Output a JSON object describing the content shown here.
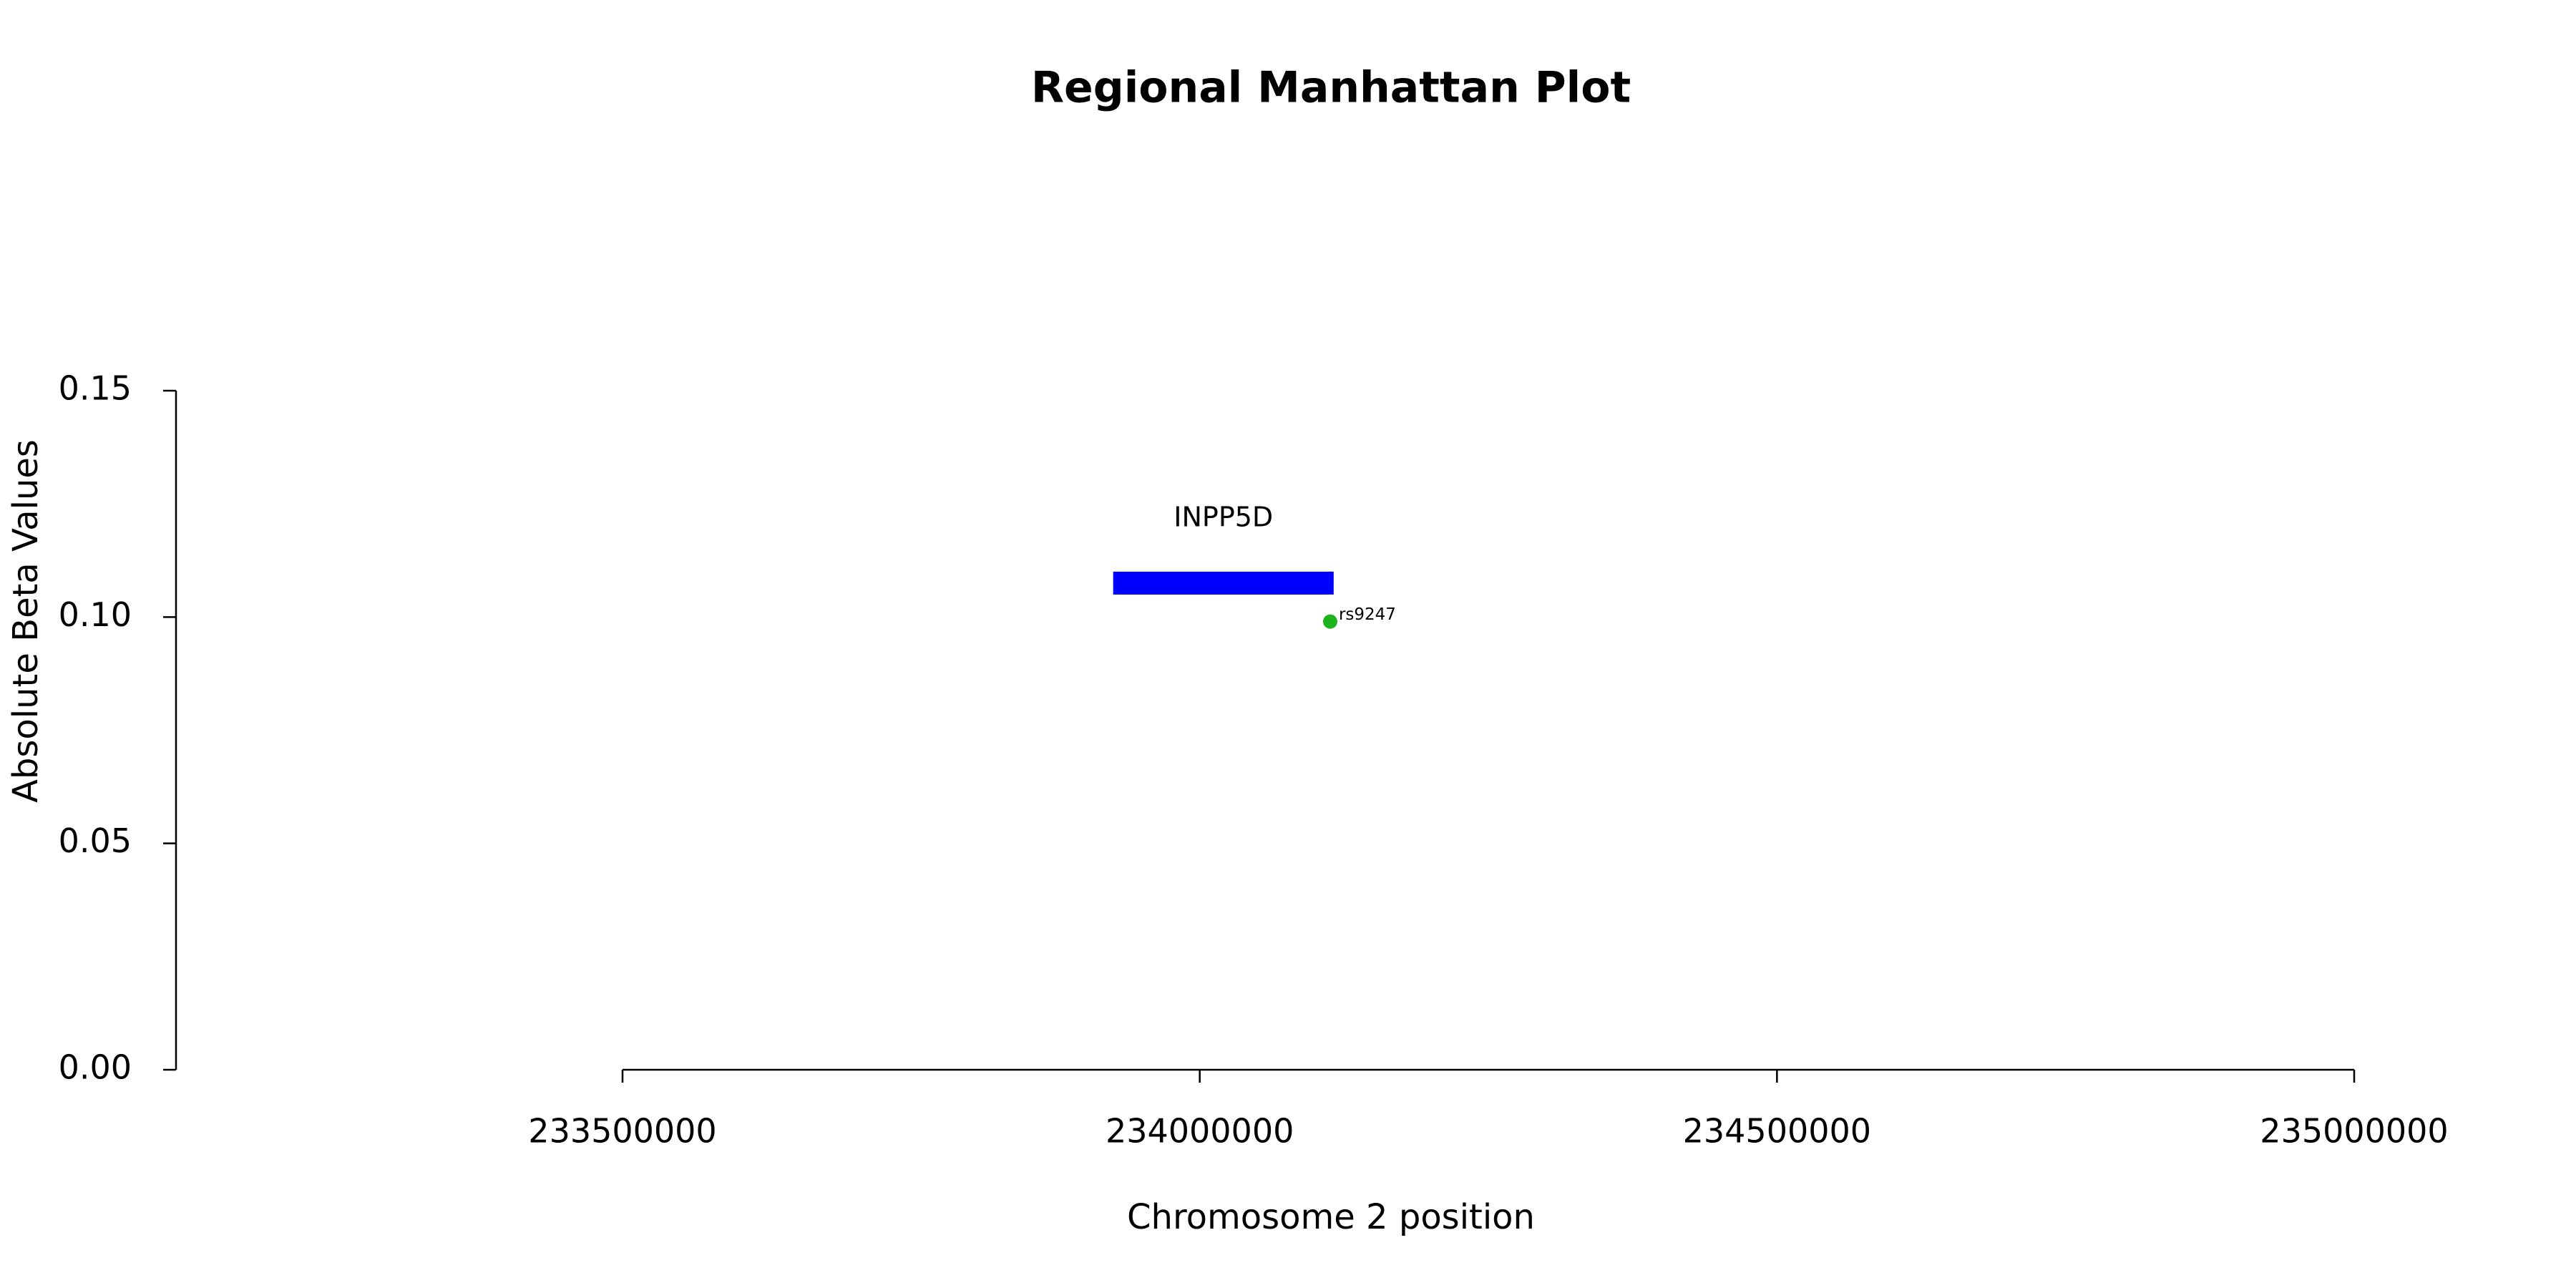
{
  "chart_data": {
    "type": "scatter",
    "title": "Regional Manhattan Plot",
    "x_label": "Chromosome 2 position",
    "y_label": "Absolute Beta Values",
    "x": [
      234113000
    ],
    "values": [
      0.099
    ],
    "point_labels": [
      "rs9247"
    ],
    "color": "#1db31d",
    "genes": [
      {
        "label": "INPP5D",
        "start": 233925000,
        "end": 234116000,
        "y": 0.1075,
        "color": "#0000ff"
      }
    ],
    "xlim": [
      233500000,
      235000000
    ],
    "xticks": [
      233500000,
      234000000,
      234500000,
      235000000
    ],
    "ylim": [
      0,
      0.15
    ],
    "yticks": [
      {
        "value": 0,
        "label": "0.00"
      },
      0.05,
      {
        "value": 0.1,
        "label": "0.10"
      },
      0.15
    ],
    "grid": false
  }
}
